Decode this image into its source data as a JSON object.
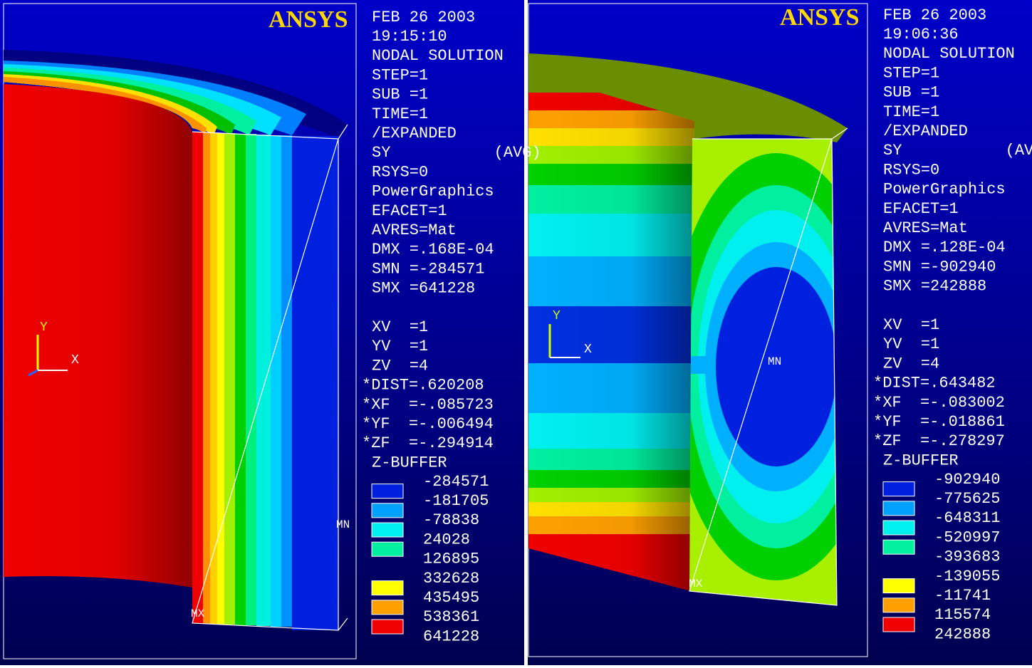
{
  "panels": [
    {
      "logo": "ANSYS",
      "info": [
        "FEB 26 2003",
        "19:15:10",
        "NODAL SOLUTION",
        "STEP=1",
        "SUB =1",
        "TIME=1",
        "/EXPANDED",
        "SY           (AVG)",
        "RSYS=0",
        "PowerGraphics",
        "EFACET=1",
        "AVRES=Mat",
        "DMX =.168E-04",
        "SMN =-284571",
        "SMX =641228"
      ],
      "view": [
        "XV  =1",
        "YV  =1",
        "ZV  =4",
        "*DIST=.620208",
        "*XF  =-.085723",
        "*YF  =-.006494",
        "*ZF  =-.294914",
        "Z-BUFFER"
      ],
      "legend": [
        "-284571",
        "-181705",
        "-78838",
        "24028",
        "126895",
        "332628",
        "435495",
        "538361",
        "641228"
      ],
      "axis_y": "Y",
      "axis_x": "X",
      "min_marker": "MN",
      "max_marker": "MX"
    },
    {
      "logo": "ANSYS",
      "info": [
        "FEB 26 2003",
        "19:06:36",
        "NODAL SOLUTION",
        "STEP=1",
        "SUB =1",
        "TIME=1",
        "/EXPANDED",
        "SY           (AVG)",
        "RSYS=0",
        "PowerGraphics",
        "EFACET=1",
        "AVRES=Mat",
        "DMX =.128E-04",
        "SMN =-902940",
        "SMX =242888"
      ],
      "view": [
        "XV  =1",
        "YV  =1",
        "ZV  =4",
        "*DIST=.643482",
        "*XF  =-.083002",
        "*YF  =-.018861",
        "*ZF  =-.278297",
        "Z-BUFFER"
      ],
      "legend": [
        "-902940",
        "-775625",
        "-648311",
        "-520997",
        "-393683",
        "-139055",
        "-11741",
        "115574",
        "242888"
      ],
      "axis_y": "Y",
      "axis_x": "X",
      "min_marker": "MN",
      "max_marker": "MX"
    }
  ]
}
